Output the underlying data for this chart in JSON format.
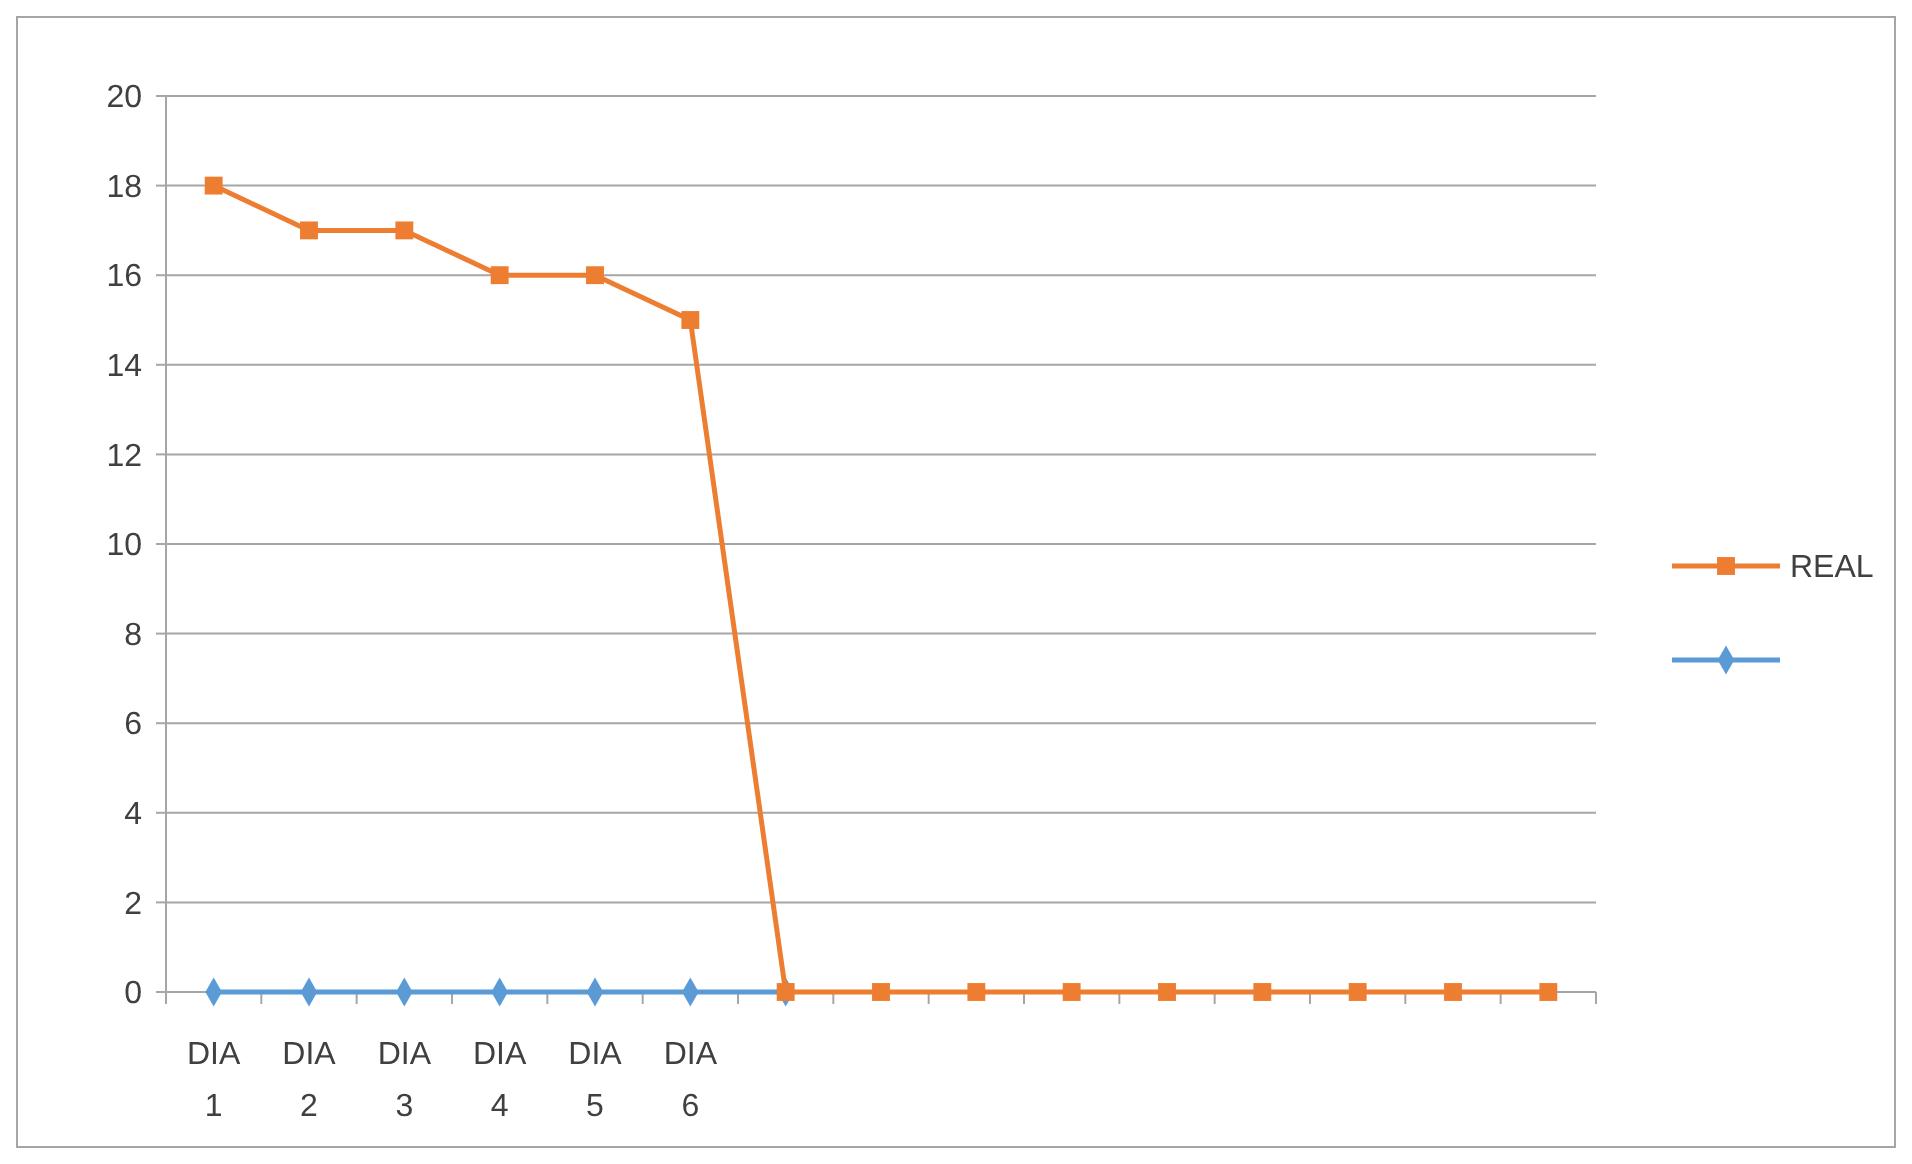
{
  "chart_data": {
    "type": "line",
    "categories": [
      "DIA 1",
      "DIA 2",
      "DIA 3",
      "DIA 4",
      "DIA 5",
      "DIA 6",
      null,
      null,
      null,
      null,
      null,
      null,
      null,
      null,
      null
    ],
    "series": [
      {
        "color": "#5b9bd5",
        "marker": "diamond",
        "values": [
          0,
          0,
          0,
          0,
          0,
          0,
          0,
          null,
          null,
          null,
          null,
          null,
          null,
          null,
          null
        ]
      },
      {
        "name": "REAL",
        "color": "#ed7d31",
        "marker": "square",
        "values": [
          18,
          17,
          17,
          16,
          16,
          15,
          0,
          0,
          0,
          0,
          0,
          0,
          0,
          0,
          0
        ]
      }
    ],
    "ylim": [
      0,
      20
    ],
    "yticks": [
      0,
      2,
      4,
      6,
      8,
      10,
      12,
      14,
      16,
      18,
      20
    ],
    "grid": "y",
    "legend": "right"
  }
}
